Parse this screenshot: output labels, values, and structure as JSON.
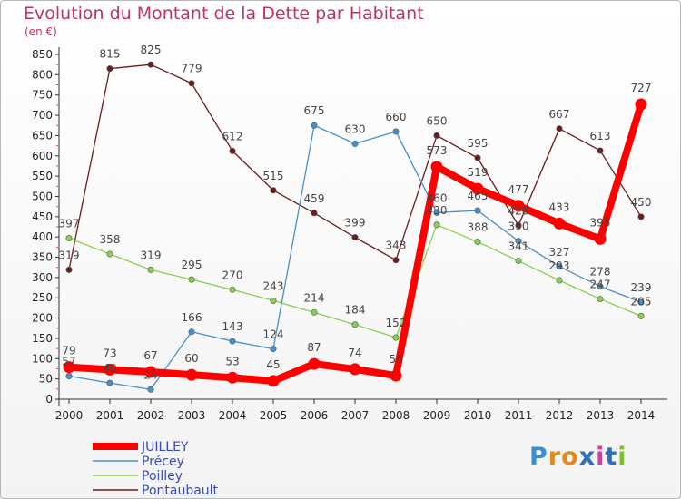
{
  "header": {
    "title": "Evolution du Montant de la Dette par Habitant",
    "subtitle": "(en €)"
  },
  "logo": {
    "letters": [
      "P",
      "r",
      "o",
      "x",
      "i",
      "t",
      "i"
    ],
    "colors": [
      "#3a8fd0",
      "#e08a1e",
      "#e08a1e",
      "#2a6fc0",
      "#d0409a",
      "#2a6fc0",
      "#7cbf2a"
    ]
  },
  "chart_data": {
    "type": "line",
    "x": [
      "2000",
      "2001",
      "2002",
      "2003",
      "2004",
      "2005",
      "2006",
      "2007",
      "2008",
      "2009",
      "2010",
      "2011",
      "2012",
      "2013",
      "2014"
    ],
    "ylim": [
      0,
      850
    ],
    "yticks": [
      0,
      50,
      100,
      150,
      200,
      250,
      300,
      350,
      400,
      450,
      500,
      550,
      600,
      650,
      700,
      750,
      800,
      850
    ],
    "grid": false,
    "legend_position": "bottom-left",
    "series": [
      {
        "name": "JUILLEY",
        "color": "#ff0000",
        "values": [
          79,
          73,
          67,
          60,
          53,
          45,
          87,
          74,
          58,
          573,
          519,
          477,
          433,
          395,
          727
        ]
      },
      {
        "name": "Précey",
        "color": "#4a90c8",
        "values": [
          57,
          40,
          24,
          166,
          143,
          124,
          675,
          630,
          660,
          460,
          465,
          390,
          327,
          278,
          239
        ]
      },
      {
        "name": "Poilley",
        "color": "#88d050",
        "values": [
          397,
          358,
          319,
          295,
          270,
          243,
          214,
          184,
          152,
          430,
          388,
          341,
          293,
          247,
          205
        ]
      },
      {
        "name": "Pontaubault",
        "color": "#6b1c1c",
        "values": [
          319,
          815,
          825,
          779,
          612,
          515,
          459,
          399,
          343,
          650,
          595,
          428,
          667,
          613,
          450
        ]
      }
    ]
  }
}
